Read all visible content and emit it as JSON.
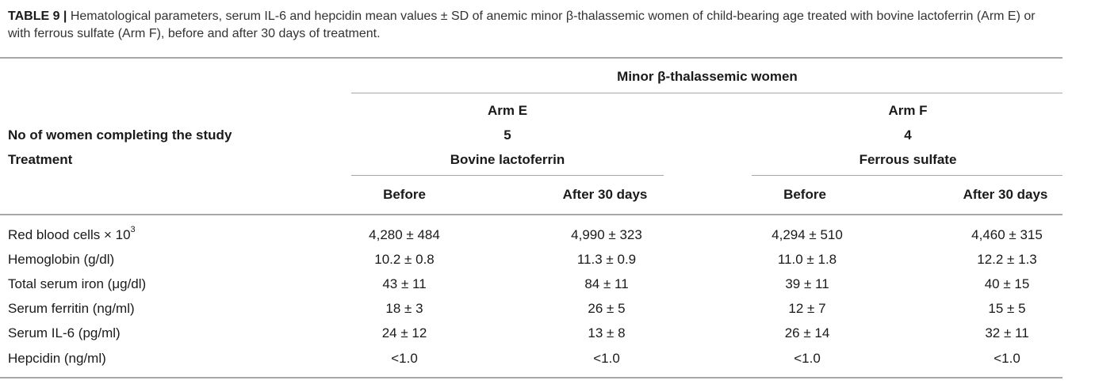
{
  "caption": {
    "label": "TABLE 9 |",
    "text": " Hematological parameters, serum IL-6 and hepcidin mean values ± SD of anemic minor β-thalassemic women of child-bearing age treated with bovine lactoferrin (Arm E) or with ferrous sulfate (Arm F), before and after 30 days of treatment."
  },
  "table": {
    "group_header": "Minor β-thalassemic women",
    "arms": [
      {
        "name": "Arm E",
        "women": "5",
        "treatment": "Bovine lactoferrin",
        "before": "Before",
        "after": "After 30 days"
      },
      {
        "name": "Arm F",
        "women": "4",
        "treatment": "Ferrous sulfate",
        "before": "Before",
        "after": "After 30 days"
      }
    ],
    "women_label": "No of women completing the study",
    "treatment_label": "Treatment",
    "rows": [
      {
        "label": "Red blood cells × 10",
        "sup": "3",
        "values": [
          "4,280 ± 484",
          "4,990 ± 323",
          "4,294 ± 510",
          "4,460 ± 315"
        ]
      },
      {
        "label": "Hemoglobin (g/dl)",
        "values": [
          "10.2 ± 0.8",
          "11.3 ± 0.9",
          "11.0 ± 1.8",
          "12.2 ± 1.3"
        ]
      },
      {
        "label": "Total serum iron (μg/dl)",
        "values": [
          "43 ± 11",
          "84 ± 11",
          "39 ± 11",
          "40 ± 15"
        ]
      },
      {
        "label": "Serum ferritin (ng/ml)",
        "values": [
          "18 ± 3",
          "26 ± 5",
          "12 ± 7",
          "15 ± 5"
        ]
      },
      {
        "label": "Serum IL-6 (pg/ml)",
        "values": [
          "24 ± 12",
          "13 ± 8",
          "26 ± 14",
          "32 ± 11"
        ]
      },
      {
        "label": "Hepcidin (ng/ml)",
        "values": [
          "<1.0",
          "<1.0",
          "<1.0",
          "<1.0"
        ]
      }
    ]
  }
}
